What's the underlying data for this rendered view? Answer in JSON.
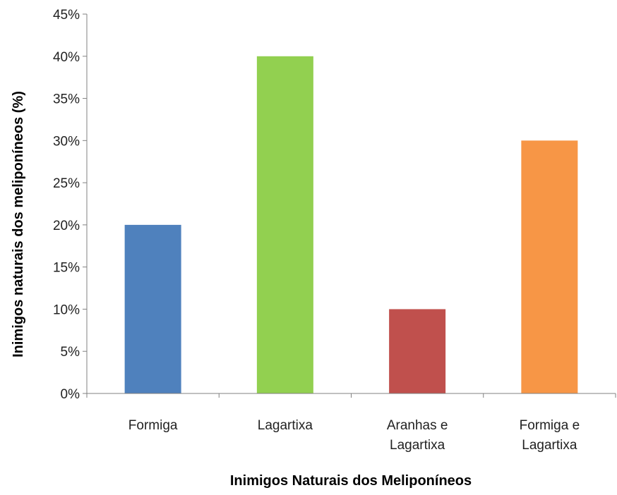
{
  "chart_data": {
    "type": "bar",
    "categories": [
      [
        "Formiga"
      ],
      [
        "Lagartixa"
      ],
      [
        "Aranhas e",
        "Lagartixa"
      ],
      [
        "Formiga e",
        "Lagartixa"
      ]
    ],
    "values": [
      20,
      40,
      10,
      30
    ],
    "value_format": "percent",
    "colors": [
      "#4f81bd",
      "#92d050",
      "#c0504d",
      "#f79646"
    ],
    "title": "",
    "xlabel": "Inimigos Naturais dos Meliponíneos",
    "ylabel": "Inimigos naturais dos meliponíneos (%)",
    "ylim": [
      0,
      45
    ],
    "yticks": [
      0,
      5,
      10,
      15,
      20,
      25,
      30,
      35,
      40,
      45
    ],
    "ytick_labels": [
      "0%",
      "5%",
      "10%",
      "15%",
      "20%",
      "25%",
      "30%",
      "35%",
      "40%",
      "45%"
    ],
    "grid": false,
    "legend": "none",
    "axis_color": "#808080"
  }
}
